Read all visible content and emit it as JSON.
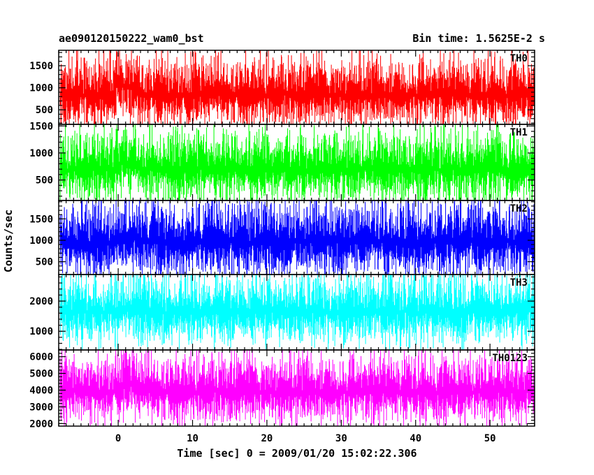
{
  "chart_data": {
    "type": "line",
    "title": "ae090120150222_wam0_bst",
    "subtitle": "Bin time: 1.5625E-2 s",
    "xlabel": "Time [sec] 0 = 2009/01/20 15:02:22.306",
    "ylabel": "Counts/sec",
    "xlim": [
      -8,
      56
    ],
    "x_start": -7.8,
    "x_end": 56.0,
    "xticks_major": [
      0,
      10,
      20,
      30,
      40,
      50
    ],
    "xtick_labels": [
      "0",
      "10",
      "20",
      "30",
      "40",
      "50"
    ],
    "panels": [
      {
        "name": "TH0",
        "color": "#ff0000",
        "ylim": [
          170,
          1850
        ],
        "yticks": [
          500,
          1000,
          1500
        ],
        "ytick_labels": [
          "500",
          "1000",
          "1500"
        ],
        "mean": 840,
        "typical_min": 330,
        "typical_max": 1500,
        "bump_peak": 1800
      },
      {
        "name": "TH1",
        "color": "#00ff00",
        "ylim": [
          120,
          1530
        ],
        "yticks": [
          500,
          1000,
          1500
        ],
        "ytick_labels": [
          "500",
          "1000",
          "1500"
        ],
        "mean": 690,
        "typical_min": 280,
        "typical_max": 1300,
        "bump_peak": 1480
      },
      {
        "name": "TH2",
        "color": "#0000ff",
        "ylim": [
          200,
          1930
        ],
        "yticks": [
          500,
          1000,
          1500
        ],
        "ytick_labels": [
          "500",
          "1000",
          "1500"
        ],
        "mean": 960,
        "typical_min": 400,
        "typical_max": 1750,
        "bump_peak": 1880
      },
      {
        "name": "TH3",
        "color": "#00ffff",
        "ylim": [
          380,
          2880
        ],
        "yticks": [
          1000,
          2000
        ],
        "ytick_labels": [
          "1000",
          "2000"
        ],
        "mean": 1650,
        "typical_min": 900,
        "typical_max": 2700,
        "bump_peak": 2850
      },
      {
        "name": "TH0123",
        "color": "#ff00ff",
        "ylim": [
          1850,
          6400
        ],
        "yticks": [
          2000,
          3000,
          4000,
          5000,
          6000
        ],
        "ytick_labels": [
          "2000",
          "3000",
          "4000",
          "5000",
          "6000"
        ],
        "mean": 3900,
        "typical_min": 2500,
        "typical_max": 5600,
        "bump_peak": 6300
      }
    ]
  }
}
